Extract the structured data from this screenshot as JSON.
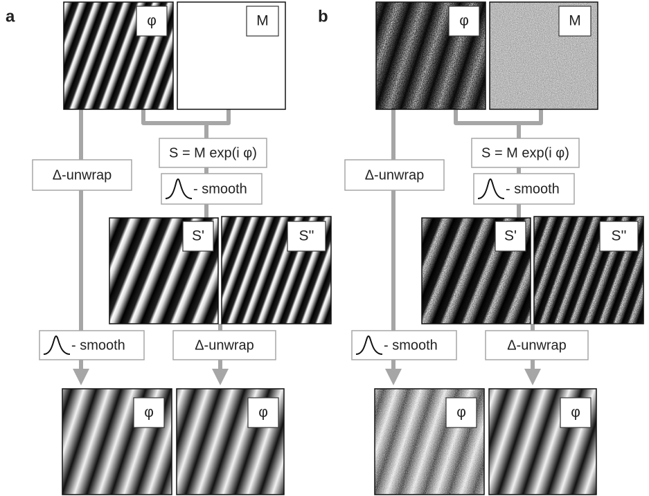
{
  "panels": [
    {
      "label": "a",
      "inputs": [
        "φ",
        "M"
      ],
      "equation": "S = M exp(i φ)",
      "left_step": "Δ-unwrap",
      "smooth_step": "- smooth",
      "intermediates": [
        "S'",
        "S''"
      ],
      "bottom_steps": [
        "- smooth",
        "Δ-unwrap"
      ],
      "outputs": [
        "φ",
        "φ"
      ]
    },
    {
      "label": "b",
      "inputs": [
        "φ",
        "M"
      ],
      "equation": "S = M exp(i φ)",
      "left_step": "Δ-unwrap",
      "smooth_step": "- smooth",
      "intermediates": [
        "S'",
        "S''"
      ],
      "bottom_steps": [
        "- smooth",
        "Δ-unwrap"
      ],
      "outputs": [
        "φ",
        "φ"
      ]
    }
  ]
}
